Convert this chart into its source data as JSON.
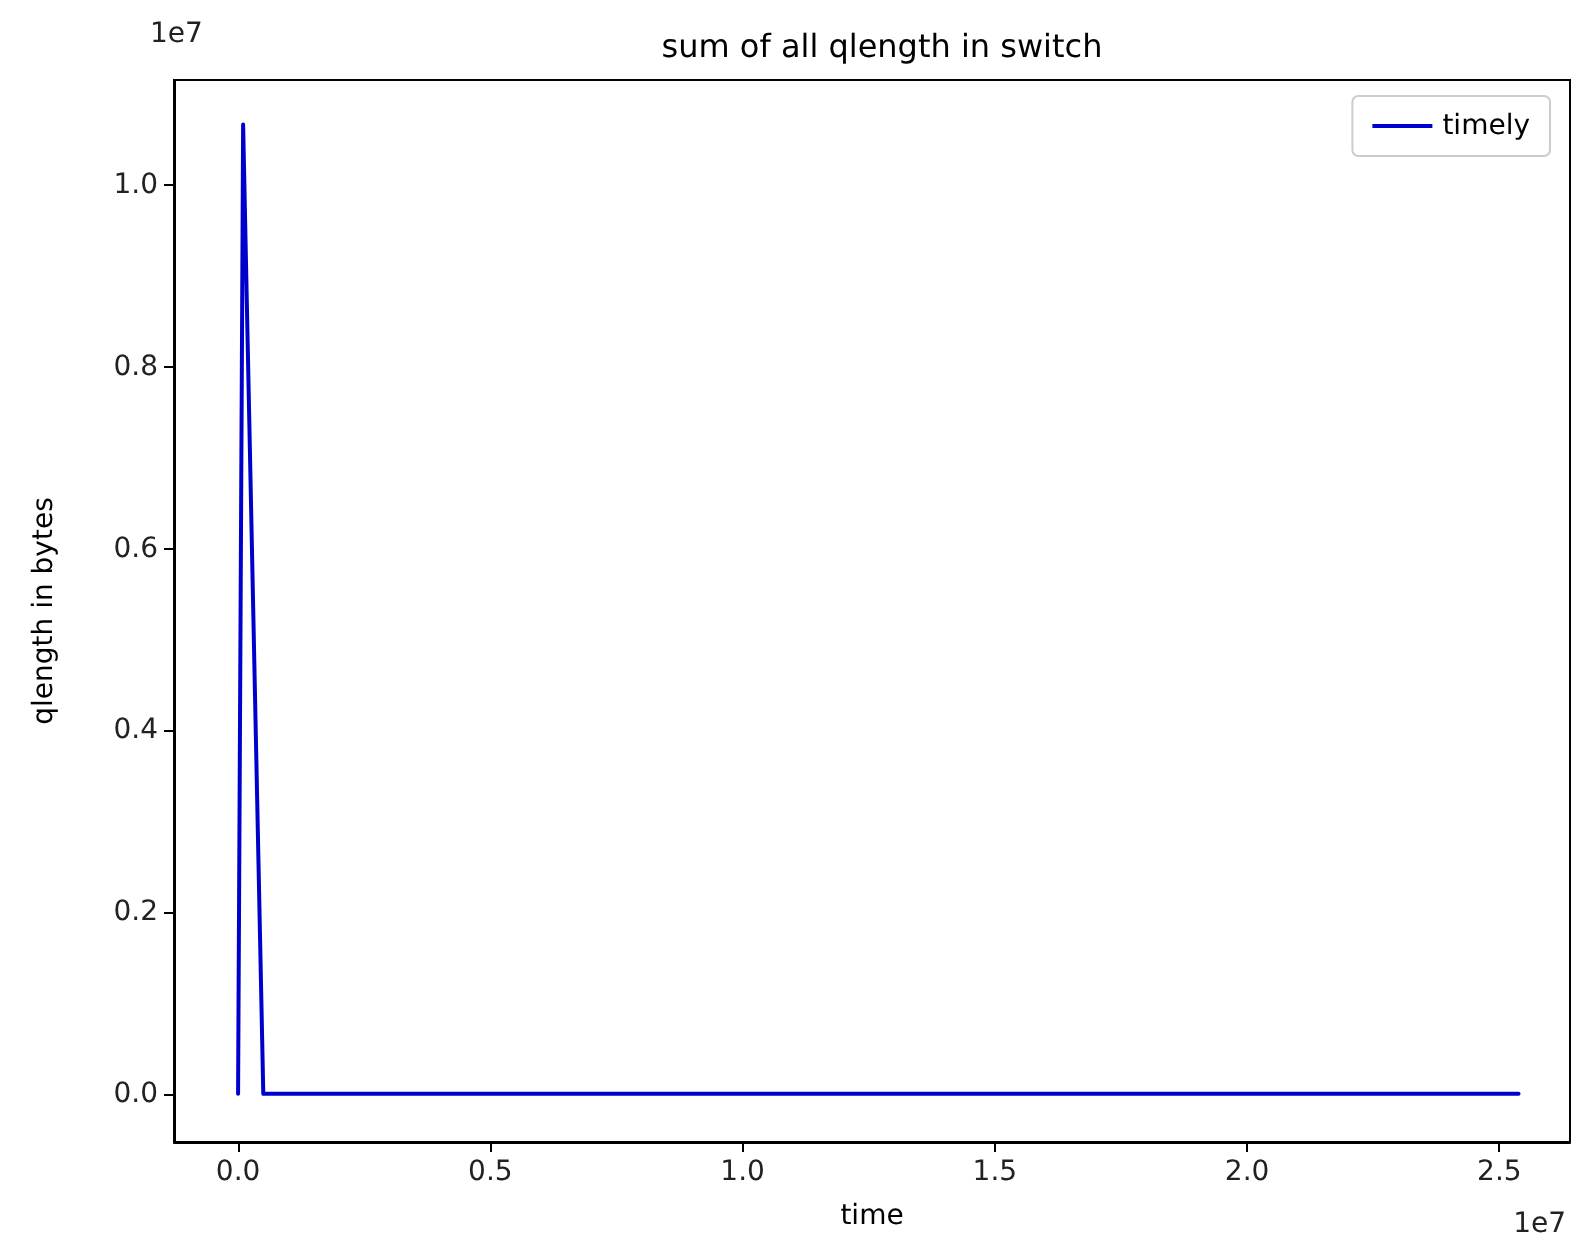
{
  "chart_data": {
    "type": "line",
    "title": "sum of all qlength in switch",
    "xlabel": "time",
    "ylabel": "qlength in bytes",
    "x": [
      0,
      0.01,
      0.05,
      2.538
    ],
    "series": [
      {
        "name": "timely",
        "color": "#0000cc",
        "values": [
          0,
          1.067,
          0,
          0
        ]
      }
    ],
    "xlim": [
      -0.127,
      2.64
    ],
    "ylim": [
      -0.053,
      1.116
    ],
    "xticks": [
      {
        "value": 0,
        "label": "0.0"
      },
      0.5,
      {
        "value": 1,
        "label": "1.0"
      },
      1.5,
      {
        "value": 2,
        "label": "2.0"
      },
      2.5
    ],
    "yticks": [
      {
        "value": 0,
        "label": "0.0"
      },
      0.2,
      0.4,
      0.6,
      0.8,
      {
        "value": 1,
        "label": "1.0"
      }
    ],
    "annotations": [
      "1e7",
      "1e7"
    ],
    "legend": "top right",
    "grid": false,
    "marker": "none",
    "line_style": "solid"
  }
}
